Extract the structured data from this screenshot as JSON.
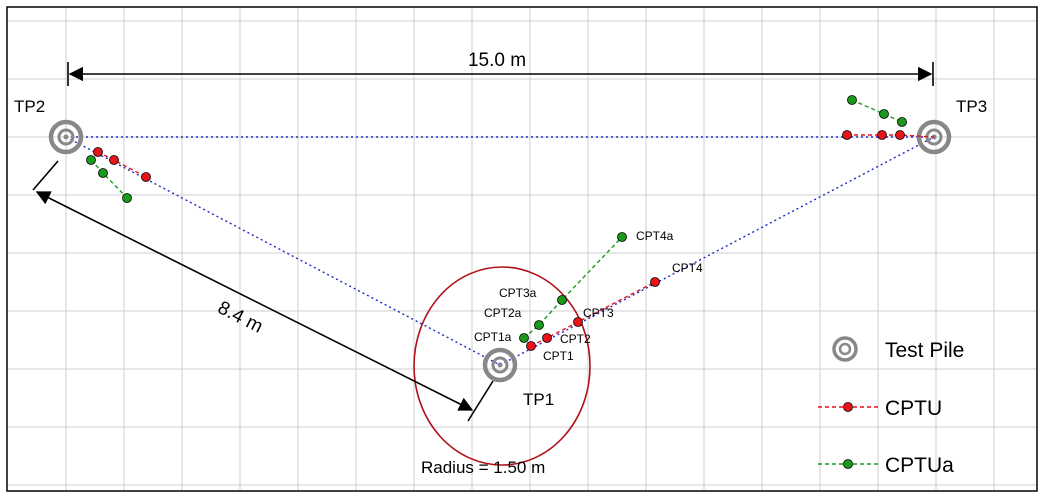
{
  "dimension_top": "15.0 m",
  "dimension_diag": "8.4 m",
  "radius_label": "Radius = 1.50 m",
  "piles": {
    "tp1": "TP1",
    "tp2": "TP2",
    "tp3": "TP3"
  },
  "cpt_labels": {
    "cpt1": "CPT1",
    "cpt2": "CPT2",
    "cpt3": "CPT3",
    "cpt4": "CPT4",
    "cpt1a": "CPT1a",
    "cpt2a": "CPT2a",
    "cpt3a": "CPT3a",
    "cpt4a": "CPT4a"
  },
  "legend": {
    "test_pile": "Test Pile",
    "cptu": "CPTU",
    "cptua": "CPTUa"
  },
  "colors": {
    "cptu": "#e8141a",
    "cptua": "#1a9a1a",
    "pile_ring": "#888888",
    "link_line": "#1b27c9",
    "radius_circle": "#b01018",
    "grid": "#cfcfcf"
  }
}
